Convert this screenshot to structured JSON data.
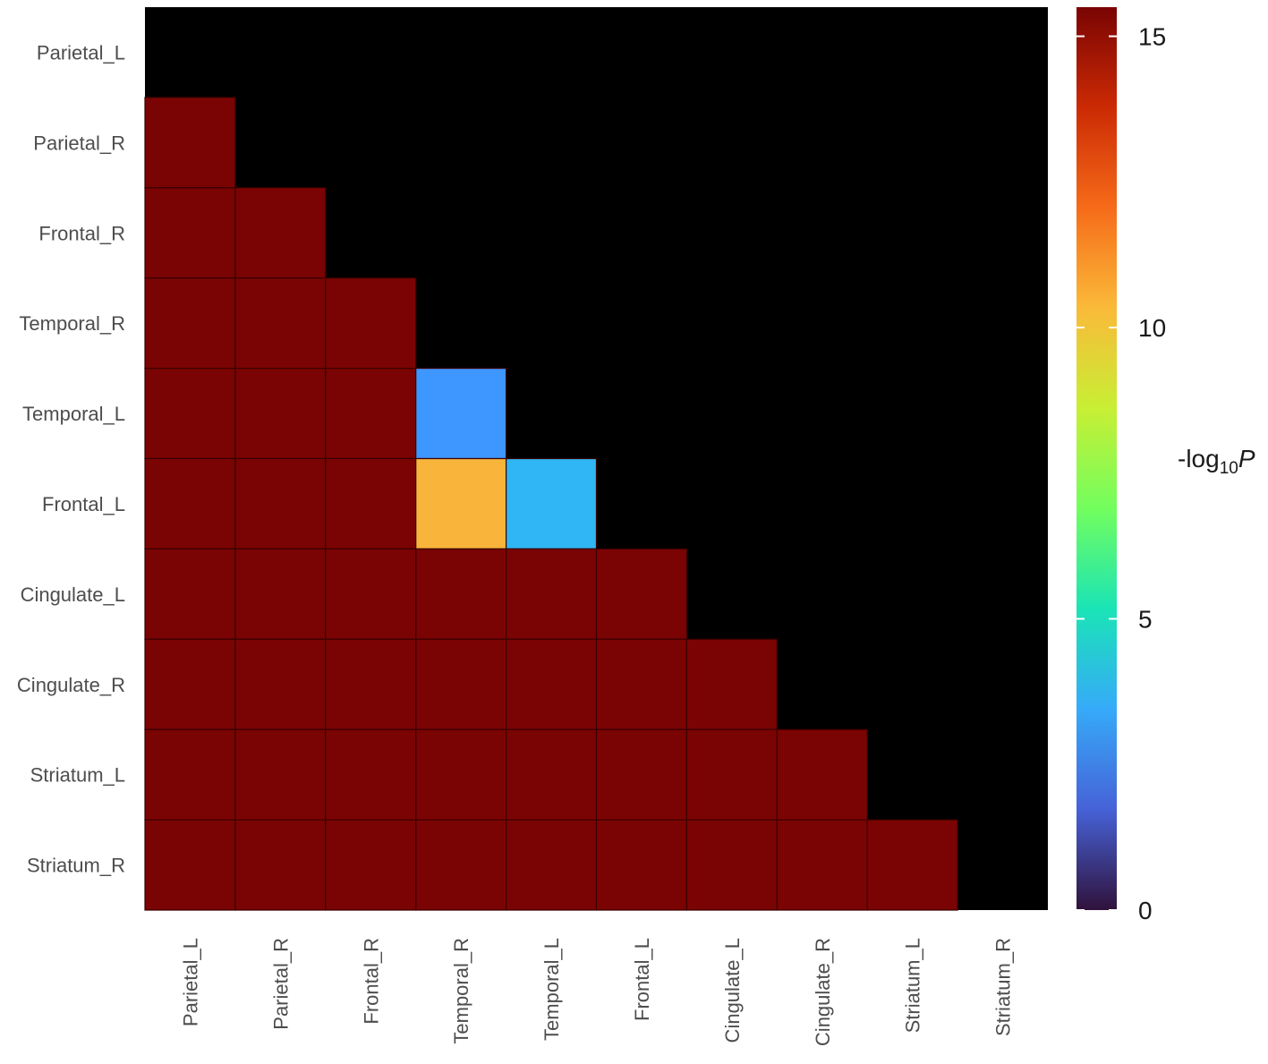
{
  "chart_data": {
    "type": "heatmap",
    "x_categories": [
      "Parietal_L",
      "Parietal_R",
      "Frontal_R",
      "Temporal_R",
      "Temporal_L",
      "Frontal_L",
      "Cingulate_L",
      "Cingulate_R",
      "Striatum_L",
      "Striatum_R"
    ],
    "y_categories": [
      "Parietal_L",
      "Parietal_R",
      "Frontal_R",
      "Temporal_R",
      "Temporal_L",
      "Frontal_L",
      "Cingulate_L",
      "Cingulate_R",
      "Striatum_L",
      "Striatum_R"
    ],
    "values": [
      [
        null,
        null,
        null,
        null,
        null,
        null,
        null,
        null,
        null,
        null
      ],
      [
        15.5,
        null,
        null,
        null,
        null,
        null,
        null,
        null,
        null,
        null
      ],
      [
        15.5,
        15.5,
        null,
        null,
        null,
        null,
        null,
        null,
        null,
        null
      ],
      [
        15.5,
        15.5,
        15.5,
        null,
        null,
        null,
        null,
        null,
        null,
        null
      ],
      [
        15.5,
        15.5,
        15.5,
        2.8,
        null,
        null,
        null,
        null,
        null,
        null
      ],
      [
        15.5,
        15.5,
        15.5,
        10.0,
        3.7,
        null,
        null,
        null,
        null,
        null
      ],
      [
        15.5,
        15.5,
        15.5,
        15.5,
        15.5,
        15.5,
        null,
        null,
        null,
        null
      ],
      [
        15.5,
        15.5,
        15.5,
        15.5,
        15.5,
        15.5,
        15.5,
        null,
        null,
        null
      ],
      [
        15.5,
        15.5,
        15.5,
        15.5,
        15.5,
        15.5,
        15.5,
        15.5,
        null,
        null
      ],
      [
        15.5,
        15.5,
        15.5,
        15.5,
        15.5,
        15.5,
        15.5,
        15.5,
        15.5,
        null
      ]
    ],
    "cell_colors": [
      [
        null,
        null,
        null,
        null,
        null,
        null,
        null,
        null,
        null,
        null
      ],
      [
        "#7a0403",
        null,
        null,
        null,
        null,
        null,
        null,
        null,
        null,
        null
      ],
      [
        "#7a0403",
        "#7a0403",
        null,
        null,
        null,
        null,
        null,
        null,
        null,
        null
      ],
      [
        "#7a0403",
        "#7a0403",
        "#7a0403",
        null,
        null,
        null,
        null,
        null,
        null,
        null
      ],
      [
        "#7a0403",
        "#7a0403",
        "#7a0403",
        "#3e96ff",
        null,
        null,
        null,
        null,
        null,
        null
      ],
      [
        "#7a0403",
        "#7a0403",
        "#7a0403",
        "#f9b43b",
        "#30b6f5",
        null,
        null,
        null,
        null,
        null
      ],
      [
        "#7a0403",
        "#7a0403",
        "#7a0403",
        "#7a0403",
        "#7a0403",
        "#7a0403",
        null,
        null,
        null,
        null
      ],
      [
        "#7a0403",
        "#7a0403",
        "#7a0403",
        "#7a0403",
        "#7a0403",
        "#7a0403",
        "#7a0403",
        null,
        null,
        null
      ],
      [
        "#7a0403",
        "#7a0403",
        "#7a0403",
        "#7a0403",
        "#7a0403",
        "#7a0403",
        "#7a0403",
        "#7a0403",
        null,
        null
      ],
      [
        "#7a0403",
        "#7a0403",
        "#7a0403",
        "#7a0403",
        "#7a0403",
        "#7a0403",
        "#7a0403",
        "#7a0403",
        "#7a0403",
        null
      ]
    ],
    "colorbar": {
      "title_main": "-log",
      "title_sub": "10",
      "title_italic": "P",
      "range": [
        0,
        15.5
      ],
      "ticks": [
        0,
        5,
        10,
        15
      ],
      "tick_labels": [
        "0",
        "5",
        "10",
        "15"
      ],
      "colormap": "turbo",
      "gradient": [
        "#30123b",
        "#4662d7",
        "#36aaf9",
        "#1ae4b6",
        "#72fe5e",
        "#c8ef34",
        "#faba39",
        "#f66b19",
        "#cb2a04",
        "#7a0403"
      ]
    },
    "panel_background": "#000000",
    "grid": false,
    "legend_position": "right"
  }
}
